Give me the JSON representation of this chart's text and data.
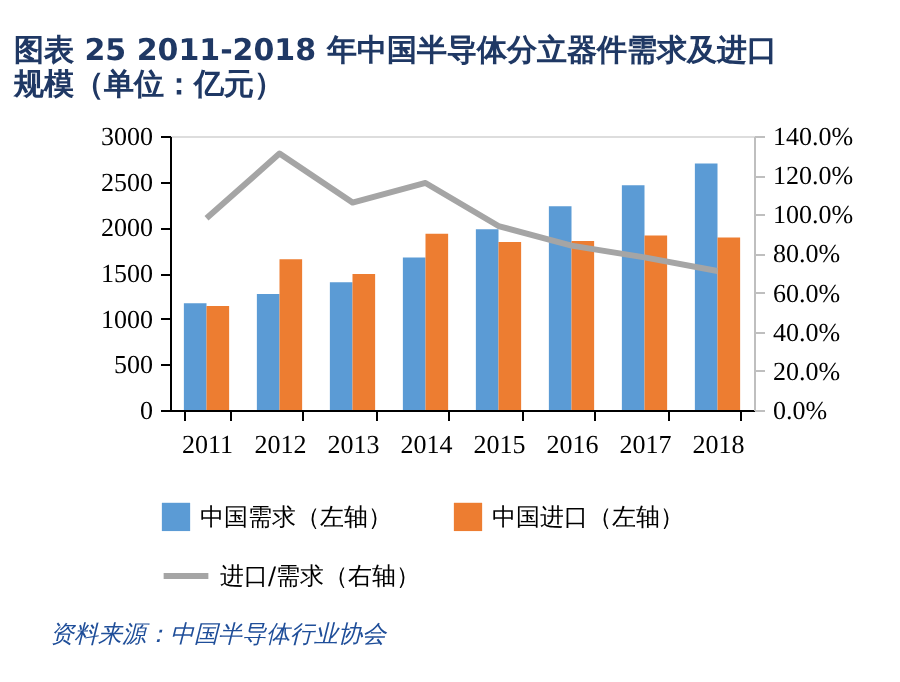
{
  "chart_data": {
    "type": "bar",
    "title": [
      "图表 25   2011-2018 年中国半导体分立器件需求及进口",
      "规模（单位：亿元）"
    ],
    "categories": [
      "2011",
      "2012",
      "2013",
      "2014",
      "2015",
      "2016",
      "2017",
      "2018"
    ],
    "series": [
      {
        "name": "中国需求（左轴）",
        "color": "#5b9bd5",
        "values": [
          1170,
          1270,
          1400,
          1670,
          1980,
          2230,
          2460,
          2700
        ]
      },
      {
        "name": "中国进口（左轴）",
        "color": "#ed7d31",
        "values": [
          1140,
          1650,
          1490,
          1930,
          1840,
          1850,
          1910,
          1890
        ]
      },
      {
        "name": "进口/需求（右轴）",
        "color": "#a5a5a5",
        "type": "line",
        "axis": "y2",
        "values": [
          98,
          131,
          106,
          116,
          94,
          84,
          78,
          71
        ]
      }
    ],
    "ylim": [
      0,
      3000
    ],
    "yticks": [
      0,
      500,
      1000,
      1500,
      2000,
      2500,
      3000
    ],
    "y2lim": [
      0,
      140
    ],
    "y2ticks": [
      {
        "value": 0,
        "label": "0.0%"
      },
      {
        "value": 20,
        "label": "20.0%"
      },
      {
        "value": 40,
        "label": "40.0%"
      },
      {
        "value": 60,
        "label": "60.0%"
      },
      {
        "value": 80,
        "label": "80.0%"
      },
      {
        "value": 100,
        "label": "100.0%"
      },
      {
        "value": 120,
        "label": "120.0%"
      },
      {
        "value": 140,
        "label": "140.0%"
      }
    ],
    "grid": false,
    "legend": "bottom",
    "marker": "none",
    "annotations": [
      "资料来源：中国半导体行业协会"
    ]
  }
}
